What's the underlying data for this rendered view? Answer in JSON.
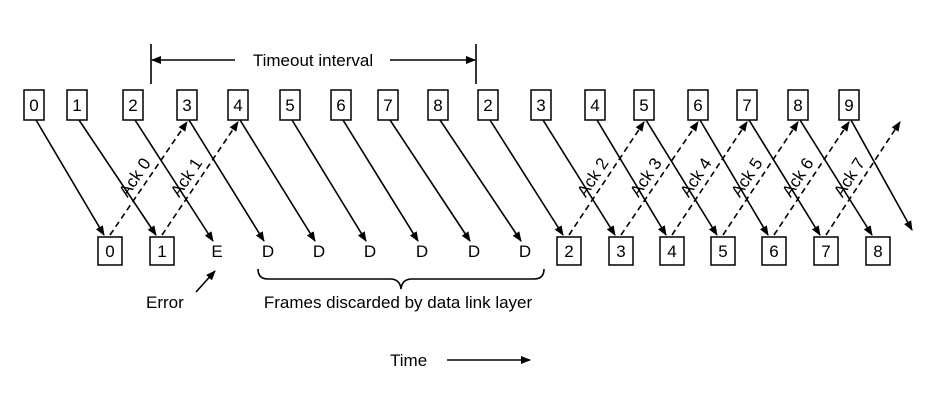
{
  "timeout_label": "Timeout interval",
  "sent_frames": [
    "0",
    "1",
    "2",
    "3",
    "4",
    "5",
    "6",
    "7",
    "8",
    "2",
    "3",
    "4",
    "5",
    "6",
    "7",
    "8",
    "9"
  ],
  "received": [
    {
      "label": "0",
      "boxed": true
    },
    {
      "label": "1",
      "boxed": true
    },
    {
      "label": "E",
      "boxed": false
    },
    {
      "label": "D",
      "boxed": false
    },
    {
      "label": "D",
      "boxed": false
    },
    {
      "label": "D",
      "boxed": false
    },
    {
      "label": "D",
      "boxed": false
    },
    {
      "label": "D",
      "boxed": false
    },
    {
      "label": "D",
      "boxed": false
    },
    {
      "label": "2",
      "boxed": true
    },
    {
      "label": "3",
      "boxed": true
    },
    {
      "label": "4",
      "boxed": true
    },
    {
      "label": "5",
      "boxed": true
    },
    {
      "label": "6",
      "boxed": true
    },
    {
      "label": "7",
      "boxed": true
    },
    {
      "label": "8",
      "boxed": true
    }
  ],
  "acks": [
    "Ack 0",
    "Ack 1",
    "Ack 2",
    "Ack 3",
    "Ack 4",
    "Ack 5",
    "Ack 6",
    "Ack 7"
  ],
  "error_label": "Error",
  "discard_label": "Frames discarded by data link layer",
  "time_label": "Time"
}
